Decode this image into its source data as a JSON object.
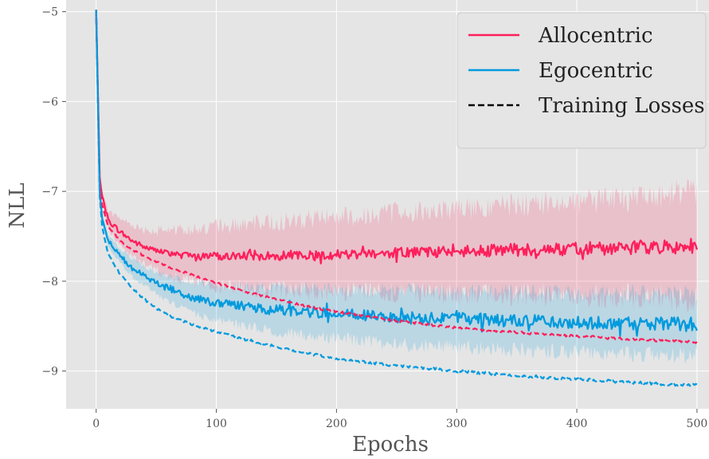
{
  "chart_data": {
    "type": "line",
    "title": "",
    "xlabel": "Epochs",
    "ylabel": "NLL",
    "xlim": [
      -25,
      510
    ],
    "ylim": [
      -9.42,
      -4.87
    ],
    "xticks": [
      0,
      100,
      200,
      300,
      400,
      500
    ],
    "yticks": [
      -5,
      -6,
      -7,
      -8,
      -9
    ],
    "xtick_labels": [
      "0",
      "100",
      "200",
      "300",
      "400",
      "500"
    ],
    "ytick_labels": [
      "−5",
      "−6",
      "−7",
      "−8",
      "−9"
    ],
    "grid": true,
    "background": "#e5e5e5",
    "legend_position": "top-right",
    "legend": [
      {
        "label": "Allocentric",
        "color": "#ff1f5b",
        "style": "solid"
      },
      {
        "label": "Egocentric",
        "color": "#009ade",
        "style": "solid"
      },
      {
        "label": "Training Losses",
        "color": "#000000",
        "style": "dashed"
      }
    ],
    "series": [
      {
        "name": "Allocentric",
        "color": "#ff1f5b",
        "x": [
          0,
          3,
          5,
          10,
          20,
          30,
          40,
          50,
          60,
          80,
          100,
          125,
          150,
          175,
          200,
          250,
          300,
          350,
          400,
          450,
          500
        ],
        "val": [
          -4.98,
          -6.85,
          -7.05,
          -7.32,
          -7.45,
          -7.55,
          -7.62,
          -7.66,
          -7.69,
          -7.71,
          -7.72,
          -7.72,
          -7.72,
          -7.71,
          -7.7,
          -7.68,
          -7.67,
          -7.65,
          -7.64,
          -7.62,
          -7.6
        ],
        "band": [
          0.0,
          0.04,
          0.06,
          0.1,
          0.15,
          0.18,
          0.2,
          0.22,
          0.25,
          0.3,
          0.33,
          0.35,
          0.38,
          0.4,
          0.42,
          0.45,
          0.47,
          0.5,
          0.52,
          0.55,
          0.6
        ],
        "noise": [
          0.0,
          0.01,
          0.01,
          0.03,
          0.03,
          0.03,
          0.03,
          0.03,
          0.03,
          0.03,
          0.04,
          0.05,
          0.05,
          0.05,
          0.06,
          0.06,
          0.06,
          0.07,
          0.07,
          0.08,
          0.09
        ]
      },
      {
        "name": "Egocentric",
        "color": "#009ade",
        "x": [
          0,
          3,
          5,
          10,
          20,
          30,
          40,
          50,
          60,
          80,
          100,
          125,
          150,
          175,
          200,
          250,
          300,
          350,
          400,
          450,
          500
        ],
        "val": [
          -4.98,
          -7.0,
          -7.3,
          -7.55,
          -7.72,
          -7.85,
          -7.94,
          -8.02,
          -8.08,
          -8.18,
          -8.24,
          -8.28,
          -8.32,
          -8.34,
          -8.36,
          -8.4,
          -8.42,
          -8.44,
          -8.46,
          -8.47,
          -8.48
        ],
        "band": [
          0.0,
          0.04,
          0.05,
          0.06,
          0.08,
          0.1,
          0.11,
          0.12,
          0.14,
          0.17,
          0.2,
          0.22,
          0.24,
          0.26,
          0.28,
          0.3,
          0.31,
          0.32,
          0.33,
          0.34,
          0.35
        ],
        "noise": [
          0.0,
          0.01,
          0.01,
          0.02,
          0.03,
          0.03,
          0.03,
          0.03,
          0.04,
          0.04,
          0.05,
          0.05,
          0.06,
          0.06,
          0.06,
          0.06,
          0.07,
          0.07,
          0.07,
          0.07,
          0.08
        ]
      },
      {
        "name": "Allocentric (training)",
        "color": "#ff1f5b",
        "dashed": true,
        "x": [
          0,
          3,
          5,
          10,
          20,
          30,
          40,
          50,
          60,
          80,
          100,
          125,
          150,
          175,
          200,
          250,
          300,
          350,
          400,
          450,
          500
        ],
        "val": [
          -4.98,
          -6.95,
          -7.15,
          -7.4,
          -7.55,
          -7.65,
          -7.72,
          -7.78,
          -7.84,
          -7.93,
          -8.02,
          -8.12,
          -8.2,
          -8.28,
          -8.34,
          -8.44,
          -8.52,
          -8.57,
          -8.61,
          -8.65,
          -8.68
        ],
        "noise": [
          0.0,
          0.005,
          0.005,
          0.01,
          0.01,
          0.01,
          0.01,
          0.01,
          0.01,
          0.012,
          0.012,
          0.012,
          0.012,
          0.013,
          0.013,
          0.013,
          0.013,
          0.014,
          0.014,
          0.014,
          0.015
        ]
      },
      {
        "name": "Egocentric (training)",
        "color": "#009ade",
        "dashed": true,
        "x": [
          0,
          3,
          5,
          10,
          20,
          30,
          40,
          50,
          60,
          80,
          100,
          125,
          150,
          175,
          200,
          250,
          300,
          350,
          400,
          450,
          500
        ],
        "val": [
          -4.98,
          -7.05,
          -7.4,
          -7.7,
          -7.92,
          -8.08,
          -8.2,
          -8.3,
          -8.38,
          -8.48,
          -8.56,
          -8.65,
          -8.73,
          -8.8,
          -8.86,
          -8.94,
          -9.0,
          -9.05,
          -9.09,
          -9.13,
          -9.16
        ],
        "noise": [
          0.0,
          0.005,
          0.005,
          0.01,
          0.012,
          0.012,
          0.012,
          0.013,
          0.013,
          0.013,
          0.014,
          0.014,
          0.014,
          0.014,
          0.015,
          0.015,
          0.015,
          0.016,
          0.016,
          0.016,
          0.017
        ]
      }
    ]
  }
}
